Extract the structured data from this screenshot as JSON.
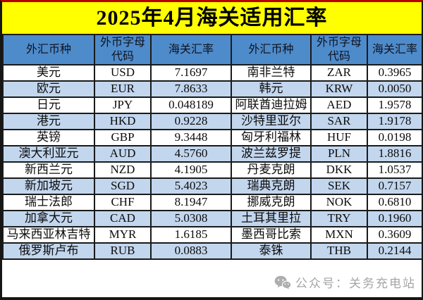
{
  "title": "2025年4月海关适用汇率",
  "table": {
    "headers": [
      "外汇币种",
      "外币字母代码",
      "海关汇率",
      "外汇币种",
      "外币字母代码",
      "海关汇率"
    ],
    "rows": [
      [
        "美元",
        "USD",
        "7.1697",
        "南非兰特",
        "ZAR",
        "0.3965"
      ],
      [
        "欧元",
        "EUR",
        "7.8633",
        "韩元",
        "KRW",
        "0.0050"
      ],
      [
        "日元",
        "JPY",
        "0.048189",
        "阿联酋迪拉姆",
        "AED",
        "1.9578"
      ],
      [
        "港元",
        "HKD",
        "0.9228",
        "沙特里亚尔",
        "SAR",
        "1.9178"
      ],
      [
        "英镑",
        "GBP",
        "9.3448",
        "匈牙利福林",
        "HUF",
        "0.0198"
      ],
      [
        "澳大利亚元",
        "AUD",
        "4.5760",
        "波兰兹罗提",
        "PLN",
        "1.8816"
      ],
      [
        "新西兰元",
        "NZD",
        "4.1905",
        "丹麦克朗",
        "DKK",
        "1.0537"
      ],
      [
        "新加坡元",
        "SGD",
        "5.4023",
        "瑞典克朗",
        "SEK",
        "0.7157"
      ],
      [
        "瑞士法郎",
        "CHF",
        "8.1947",
        "挪威克朗",
        "NOK",
        "0.6810"
      ],
      [
        "加拿大元",
        "CAD",
        "5.0308",
        "土耳其里拉",
        "TRY",
        "0.1960"
      ],
      [
        "马来西亚林吉特",
        "MYR",
        "1.6185",
        "墨西哥比索",
        "MXN",
        "0.3609"
      ],
      [
        "俄罗斯卢布",
        "RUB",
        "0.0883",
        "泰铢",
        "THB",
        "0.2144"
      ]
    ]
  },
  "watermark": {
    "icon": "wechat-icon",
    "text": "公众号：关务充电站"
  },
  "colors": {
    "title_bg": "#FFFF00",
    "title_text": "#000000",
    "header_bg": "#4E8BCB",
    "stripe_bg": "#C2D6EE",
    "row_bg": "#FFFFFF",
    "border": "#1A1A1A",
    "top_edge": "#B40000",
    "watermark_text": "#8F8F8F"
  }
}
